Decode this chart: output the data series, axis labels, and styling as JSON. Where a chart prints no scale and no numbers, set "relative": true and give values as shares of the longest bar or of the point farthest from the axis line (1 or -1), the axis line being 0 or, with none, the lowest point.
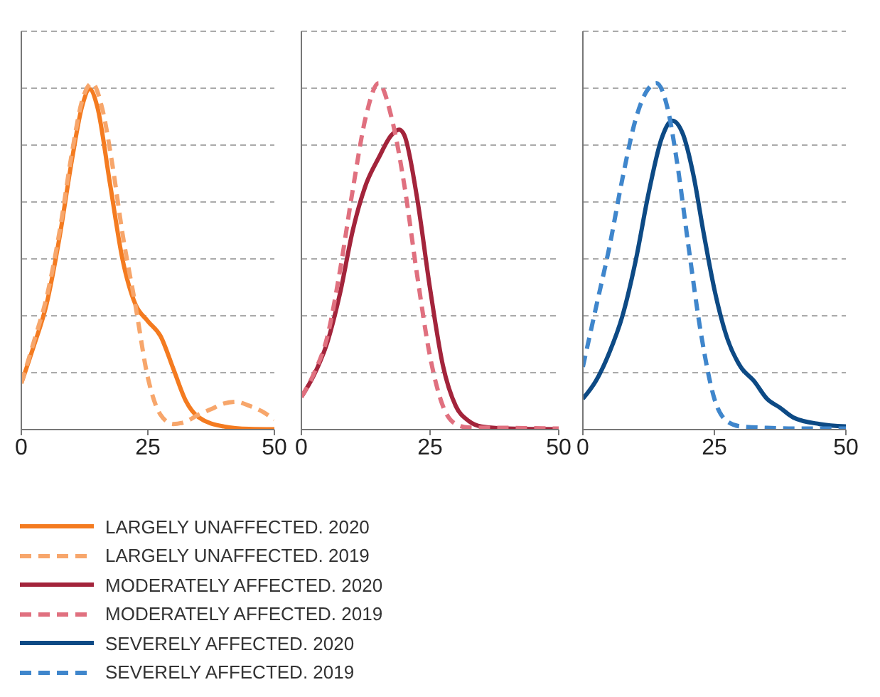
{
  "chart_data": [
    {
      "type": "line",
      "relative": true,
      "xlim": [
        0,
        50
      ],
      "xticks": [
        0,
        25,
        50
      ],
      "grid": "y",
      "legend": "bottom",
      "tick_labels": "x",
      "series": [
        {
          "name": "LARGELY UNAFFECTED. 2020",
          "color": "#f47b20",
          "line_style": "solid",
          "x": [
            0,
            2.5,
            5,
            7.5,
            10,
            12,
            13.5,
            15,
            17.5,
            20,
            22.5,
            25,
            27.5,
            30,
            32.5,
            35,
            40,
            45,
            50
          ],
          "values": [
            0.134,
            0.243,
            0.363,
            0.551,
            0.779,
            0.933,
            0.983,
            0.933,
            0.712,
            0.491,
            0.363,
            0.313,
            0.27,
            0.177,
            0.083,
            0.036,
            0.009,
            0.002,
            0.001
          ]
        },
        {
          "name": "LARGELY UNAFFECTED. 2019",
          "color": "#f7a66b",
          "line_style": "dashed",
          "x": [
            0,
            2.5,
            5,
            7.5,
            10,
            12,
            14,
            16,
            18,
            20,
            22.5,
            25,
            27.5,
            30,
            32.5,
            35,
            37.5,
            40,
            42.5,
            45,
            47.5,
            50
          ],
          "values": [
            0.134,
            0.255,
            0.382,
            0.567,
            0.799,
            0.949,
            1,
            0.926,
            0.764,
            0.565,
            0.363,
            0.15,
            0.043,
            0.016,
            0.023,
            0.043,
            0.059,
            0.075,
            0.08,
            0.069,
            0.053,
            0.029
          ]
        }
      ]
    },
    {
      "type": "line",
      "relative": true,
      "xlim": [
        0,
        50
      ],
      "xticks": [
        0,
        25,
        50
      ],
      "grid": "y",
      "legend": "bottom",
      "tick_labels": "x",
      "series": [
        {
          "name": "MODERATELY AFFECTED. 2020",
          "color": "#a3243b",
          "line_style": "solid",
          "x": [
            0,
            2.5,
            5,
            7.5,
            10,
            12.5,
            15,
            17.5,
            19,
            20,
            22.5,
            25,
            27.5,
            30,
            32.5,
            35,
            40,
            50
          ],
          "values": [
            0.094,
            0.159,
            0.25,
            0.393,
            0.576,
            0.706,
            0.784,
            0.85,
            0.866,
            0.85,
            0.667,
            0.407,
            0.185,
            0.068,
            0.025,
            0.009,
            0.003,
            0.001
          ]
        },
        {
          "name": "MODERATELY AFFECTED. 2019",
          "color": "#e0707f",
          "line_style": "dashed",
          "x": [
            0,
            2.5,
            5,
            7.5,
            10,
            12.5,
            15,
            17.5,
            20,
            22.5,
            25,
            27.5,
            30,
            32.5,
            40,
            50
          ],
          "values": [
            0.094,
            0.164,
            0.266,
            0.459,
            0.694,
            0.902,
            1,
            0.902,
            0.706,
            0.445,
            0.211,
            0.068,
            0.016,
            0.006,
            0.005,
            0.003
          ]
        }
      ]
    },
    {
      "type": "line",
      "relative": true,
      "xlim": [
        0,
        50
      ],
      "xticks": [
        0,
        25,
        50
      ],
      "grid": "y",
      "legend": "bottom",
      "tick_labels": "x",
      "series": [
        {
          "name": "SEVERELY AFFECTED. 2020",
          "color": "#0d4a85",
          "line_style": "solid",
          "x": [
            0,
            2.5,
            5,
            7.5,
            10,
            12.5,
            15,
            17,
            19,
            21,
            23,
            25,
            27.5,
            30,
            32.5,
            35,
            37.5,
            40,
            45,
            50
          ],
          "values": [
            0.089,
            0.141,
            0.221,
            0.327,
            0.485,
            0.683,
            0.842,
            0.892,
            0.854,
            0.736,
            0.564,
            0.405,
            0.261,
            0.181,
            0.141,
            0.089,
            0.063,
            0.035,
            0.016,
            0.009
          ]
        },
        {
          "name": "SEVERELY AFFECTED. 2019",
          "color": "#3f86cc",
          "line_style": "dashed",
          "x": [
            0,
            2.5,
            5,
            7.5,
            10,
            12,
            14,
            16,
            18,
            20,
            22.5,
            25,
            27.5,
            30,
            35,
            40,
            50
          ],
          "values": [
            0.181,
            0.353,
            0.524,
            0.723,
            0.894,
            0.974,
            1,
            0.934,
            0.762,
            0.538,
            0.273,
            0.089,
            0.023,
            0.009,
            0.005,
            0.003,
            0.003
          ]
        }
      ]
    }
  ]
}
